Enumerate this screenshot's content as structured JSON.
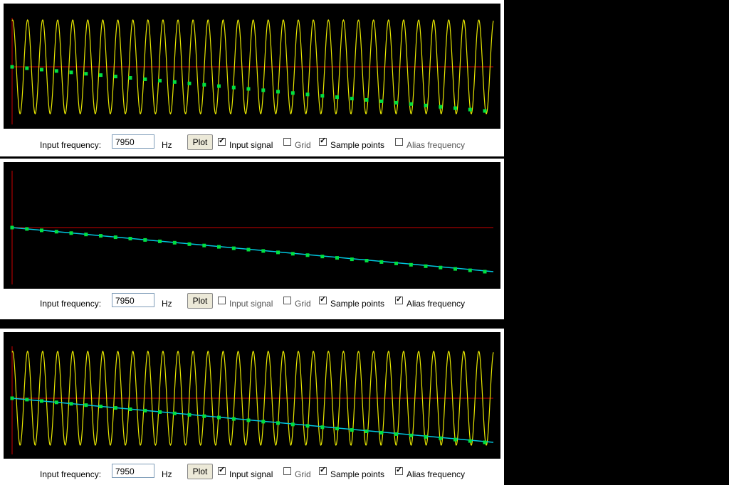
{
  "panels": [
    {
      "freq_label": "Input frequency:",
      "freq_value": "7950",
      "unit": "Hz",
      "plot_button": "Plot",
      "checkboxes": [
        {
          "label": "Input signal",
          "checked": true
        },
        {
          "label": "Grid",
          "checked": false
        },
        {
          "label": "Sample points",
          "checked": true
        },
        {
          "label": "Alias frequency",
          "checked": false
        }
      ],
      "show_signal": true,
      "show_points": true,
      "show_alias": false
    },
    {
      "freq_label": "Input frequency:",
      "freq_value": "7950",
      "unit": "Hz",
      "plot_button": "Plot",
      "checkboxes": [
        {
          "label": "Input signal",
          "checked": false
        },
        {
          "label": "Grid",
          "checked": false
        },
        {
          "label": "Sample points",
          "checked": true
        },
        {
          "label": "Alias frequency",
          "checked": true
        }
      ],
      "show_signal": false,
      "show_points": true,
      "show_alias": true
    },
    {
      "freq_label": "Input frequency:",
      "freq_value": "7950",
      "unit": "Hz",
      "plot_button": "Plot",
      "checkboxes": [
        {
          "label": "Input signal",
          "checked": true
        },
        {
          "label": "Grid",
          "checked": false
        },
        {
          "label": "Sample points",
          "checked": true
        },
        {
          "label": "Alias frequency",
          "checked": true
        }
      ],
      "show_signal": true,
      "show_points": true,
      "show_alias": true
    }
  ],
  "colors": {
    "signal": "#e8e800",
    "axis": "#cc0000",
    "sample": "#00e040",
    "alias": "#00c8e0"
  }
}
